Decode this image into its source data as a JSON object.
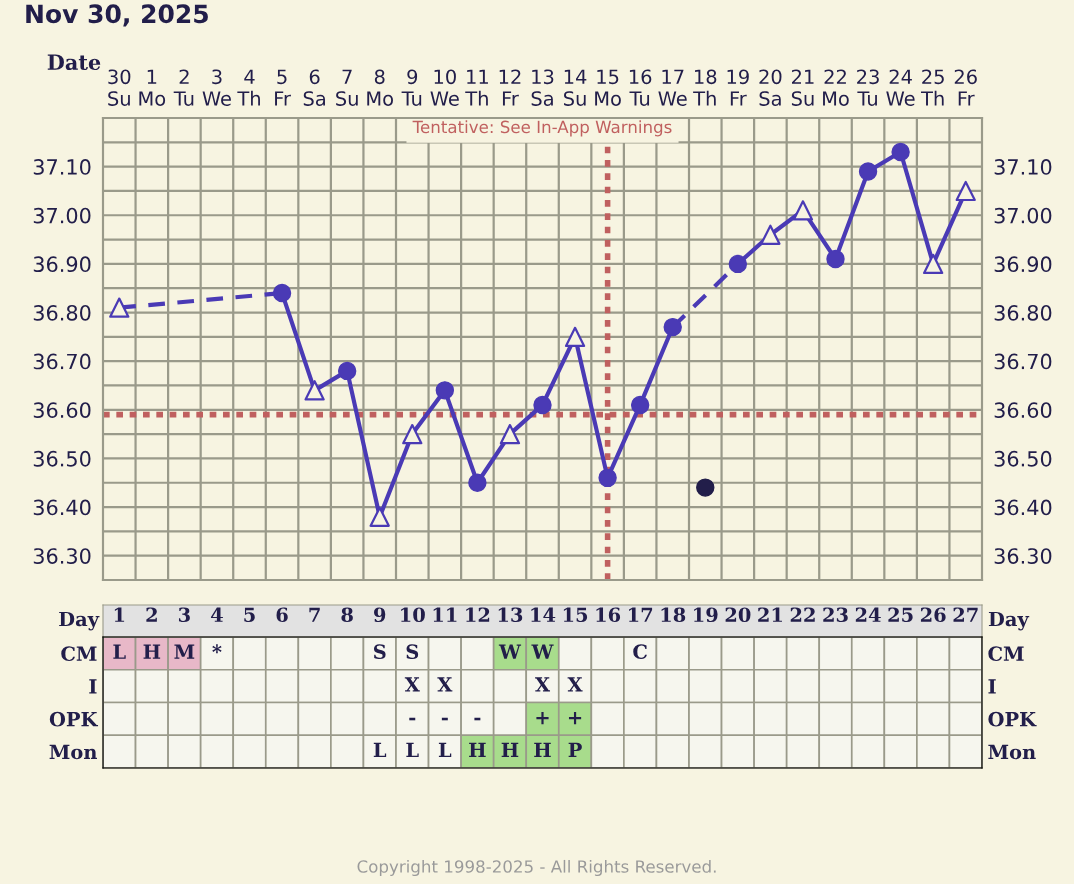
{
  "chart_data": [
    {
      "type": "line",
      "title": "Nov 30, 2025",
      "xlabel": "Date",
      "categories": [
        "30\nSu",
        "1\nMo",
        "2\nTu",
        "3\nWe",
        "4\nTh",
        "5\nFr",
        "6\nSa",
        "7\nSu",
        "8\nMo",
        "9\nTu",
        "10\nWe",
        "11\nTh",
        "12\nFr",
        "13\nSa",
        "14\nSu",
        "15\nMo",
        "16\nTu",
        "17\nWe",
        "18\nTh",
        "19\nFr",
        "20\nSa",
        "21\nSu",
        "22\nMo",
        "23\nTu",
        "24\nWe",
        "25\nTh",
        "26\nFr"
      ],
      "series": [
        {
          "type": "line",
          "line_style": "dashed",
          "marker": "none",
          "color": "#4a3ab5",
          "values": [
            36.81,
            null,
            null,
            null,
            null,
            36.84,
            null,
            null,
            null,
            null,
            null,
            null,
            null,
            null,
            null,
            null,
            null,
            null,
            null,
            null,
            null,
            null,
            null,
            null,
            null,
            null,
            null
          ]
        },
        {
          "type": "line",
          "line_style": "solid",
          "marker": "none",
          "color": "#4a3ab5",
          "values": [
            null,
            null,
            null,
            null,
            null,
            36.84,
            36.64,
            36.68,
            36.38,
            36.55,
            36.64,
            36.45,
            36.55,
            36.61,
            36.75,
            36.46,
            36.61,
            36.77,
            null,
            null,
            null,
            null,
            null,
            null,
            null,
            null,
            null
          ]
        },
        {
          "type": "line",
          "line_style": "dashed",
          "marker": "none",
          "color": "#4a3ab5",
          "values": [
            null,
            null,
            null,
            null,
            null,
            null,
            null,
            null,
            null,
            null,
            null,
            null,
            null,
            null,
            null,
            null,
            null,
            36.77,
            null,
            36.9,
            null,
            null,
            null,
            null,
            null,
            null,
            null
          ]
        },
        {
          "type": "line",
          "line_style": "solid",
          "marker": "none",
          "color": "#4a3ab5",
          "values": [
            null,
            null,
            null,
            null,
            null,
            null,
            null,
            null,
            null,
            null,
            null,
            null,
            null,
            null,
            null,
            null,
            null,
            null,
            null,
            36.9,
            36.96,
            37.01,
            36.91,
            37.09,
            37.13,
            36.9,
            37.05
          ]
        },
        {
          "type": "scatter",
          "marker": "circle",
          "color": "#4a3ab5",
          "values": [
            null,
            null,
            null,
            null,
            null,
            36.84,
            null,
            36.68,
            null,
            null,
            36.64,
            36.45,
            null,
            36.61,
            null,
            36.46,
            36.61,
            36.77,
            null,
            36.9,
            null,
            null,
            36.91,
            37.09,
            37.13,
            null,
            null
          ]
        },
        {
          "type": "scatter",
          "marker": "triangle",
          "color": "#4a3ab5",
          "values": [
            36.81,
            null,
            null,
            null,
            null,
            null,
            36.64,
            null,
            36.38,
            36.55,
            null,
            null,
            36.55,
            null,
            36.75,
            null,
            null,
            null,
            null,
            null,
            36.96,
            37.01,
            null,
            null,
            null,
            36.9,
            37.05
          ]
        },
        {
          "type": "scatter",
          "marker": "circle",
          "color": "#221e4a",
          "values": [
            null,
            null,
            null,
            null,
            null,
            null,
            null,
            null,
            null,
            null,
            null,
            null,
            null,
            null,
            null,
            null,
            null,
            null,
            36.44,
            null,
            null,
            null,
            null,
            null,
            null,
            null,
            null
          ]
        }
      ],
      "ylim": [
        36.25,
        37.2
      ],
      "yticks": [
        {
          "value": 36.3,
          "label": "36.30"
        },
        {
          "value": 36.35,
          "label": null
        },
        {
          "value": 36.4,
          "label": "36.40"
        },
        {
          "value": 36.45,
          "label": null
        },
        {
          "value": 36.5,
          "label": "36.50"
        },
        {
          "value": 36.55,
          "label": null
        },
        {
          "value": 36.6,
          "label": "36.60"
        },
        {
          "value": 36.65,
          "label": null
        },
        {
          "value": 36.7,
          "label": "36.70"
        },
        {
          "value": 36.75,
          "label": null
        },
        {
          "value": 36.8,
          "label": "36.80"
        },
        {
          "value": 36.85,
          "label": null
        },
        {
          "value": 36.9,
          "label": "36.90"
        },
        {
          "value": 36.95,
          "label": null
        },
        {
          "value": 37.0,
          "label": "37.00"
        },
        {
          "value": 37.05,
          "label": null
        },
        {
          "value": 37.1,
          "label": "37.10"
        },
        {
          "value": 37.15,
          "label": null
        }
      ],
      "y2lim": [
        36.25,
        37.2
      ],
      "y2ticks": [
        {
          "value": 36.3,
          "label": "36.30"
        },
        {
          "value": 36.35,
          "label": null
        },
        {
          "value": 36.4,
          "label": "36.40"
        },
        {
          "value": 36.45,
          "label": null
        },
        {
          "value": 36.5,
          "label": "36.50"
        },
        {
          "value": 36.55,
          "label": null
        },
        {
          "value": 36.6,
          "label": "36.60"
        },
        {
          "value": 36.65,
          "label": null
        },
        {
          "value": 36.7,
          "label": "36.70"
        },
        {
          "value": 36.75,
          "label": null
        },
        {
          "value": 36.8,
          "label": "36.80"
        },
        {
          "value": 36.85,
          "label": null
        },
        {
          "value": 36.9,
          "label": "36.90"
        },
        {
          "value": 36.95,
          "label": null
        },
        {
          "value": 37.0,
          "label": "37.00"
        },
        {
          "value": 37.05,
          "label": null
        },
        {
          "value": 37.1,
          "label": "37.10"
        },
        {
          "value": 37.15,
          "label": null
        }
      ],
      "ref_lines": [
        {
          "axis": "y",
          "value": 36.59,
          "color": "#c0605f",
          "line_style": "dotted"
        },
        {
          "axis": "x",
          "value": "15\nMo",
          "color": "#c0605f",
          "line_style": "dotted"
        }
      ],
      "annotations": [
        "Tentative: See In-App Warnings"
      ],
      "grid": true
    },
    {
      "type": "heatmap",
      "xlabel": "Day",
      "categories": [
        "1",
        "2",
        "3",
        "4",
        "5",
        "6",
        "7",
        "8",
        "9",
        "10",
        "11",
        "12",
        "13",
        "14",
        "15",
        "16",
        "17",
        "18",
        "19",
        "20",
        "21",
        "22",
        "23",
        "24",
        "25",
        "26",
        "27"
      ],
      "y_categories": [
        "CM",
        "I",
        "OPK",
        "Mon"
      ],
      "y2_categories": [
        "CM",
        "I",
        "OPK",
        "Mon"
      ],
      "cells": [
        [
          null,
          null,
          null,
          null,
          null,
          null,
          null,
          null,
          null,
          null,
          null,
          null,
          null,
          null,
          null,
          null,
          null,
          null,
          null,
          null,
          null,
          null,
          null,
          null,
          null,
          null,
          null
        ],
        [
          null,
          null,
          null,
          null,
          null,
          null,
          null,
          null,
          null,
          null,
          null,
          null,
          null,
          null,
          null,
          null,
          null,
          null,
          null,
          null,
          null,
          null,
          null,
          null,
          null,
          null,
          null
        ],
        [
          null,
          null,
          null,
          null,
          null,
          null,
          null,
          null,
          null,
          null,
          null,
          null,
          null,
          null,
          null,
          null,
          null,
          null,
          null,
          null,
          null,
          null,
          null,
          null,
          null,
          null,
          null
        ],
        [
          null,
          null,
          null,
          null,
          null,
          null,
          null,
          null,
          null,
          null,
          null,
          null,
          null,
          null,
          null,
          null,
          null,
          null,
          null,
          null,
          null,
          null,
          null,
          null,
          null,
          null,
          null
        ]
      ],
      "cell_labels": [
        [
          "L",
          "H",
          "M",
          "*",
          null,
          null,
          null,
          null,
          "S",
          "S",
          null,
          null,
          "W",
          "W",
          null,
          null,
          "C",
          null,
          null,
          null,
          null,
          null,
          null,
          null,
          null,
          null,
          null
        ],
        [
          null,
          null,
          null,
          null,
          null,
          null,
          null,
          null,
          null,
          "X",
          "X",
          null,
          null,
          "X",
          "X",
          null,
          null,
          null,
          null,
          null,
          null,
          null,
          null,
          null,
          null,
          null,
          null
        ],
        [
          null,
          null,
          null,
          null,
          null,
          null,
          null,
          null,
          null,
          "-",
          "-",
          "-",
          null,
          "+",
          "+",
          null,
          null,
          null,
          null,
          null,
          null,
          null,
          null,
          null,
          null,
          null,
          null
        ],
        [
          null,
          null,
          null,
          null,
          null,
          null,
          null,
          null,
          "L",
          "L",
          "L",
          "H",
          "H",
          "H",
          "P",
          null,
          null,
          null,
          null,
          null,
          null,
          null,
          null,
          null,
          null,
          null,
          null
        ]
      ],
      "colors": [
        [
          "#e8b8c8",
          "#e8b8c8",
          "#e8b8c8",
          null,
          null,
          null,
          null,
          null,
          null,
          null,
          null,
          null,
          "#a8dc8c",
          "#a8dc8c",
          null,
          null,
          null,
          null,
          null,
          null,
          null,
          null,
          null,
          null,
          null,
          null,
          null
        ],
        [
          null,
          null,
          null,
          null,
          null,
          null,
          null,
          null,
          null,
          null,
          null,
          null,
          null,
          null,
          null,
          null,
          null,
          null,
          null,
          null,
          null,
          null,
          null,
          null,
          null,
          null,
          null
        ],
        [
          null,
          null,
          null,
          null,
          null,
          null,
          null,
          null,
          null,
          null,
          null,
          null,
          null,
          "#a8dc8c",
          "#a8dc8c",
          null,
          null,
          null,
          null,
          null,
          null,
          null,
          null,
          null,
          null,
          null,
          null
        ],
        [
          null,
          null,
          null,
          null,
          null,
          null,
          null,
          null,
          null,
          null,
          null,
          "#a8dc8c",
          "#a8dc8c",
          "#a8dc8c",
          "#a8dc8c",
          null,
          null,
          null,
          null,
          null,
          null,
          null,
          null,
          null,
          null,
          null,
          null
        ]
      ],
      "annotations": [
        "Copyright 1998-2025 - All Rights Reserved."
      ]
    }
  ]
}
